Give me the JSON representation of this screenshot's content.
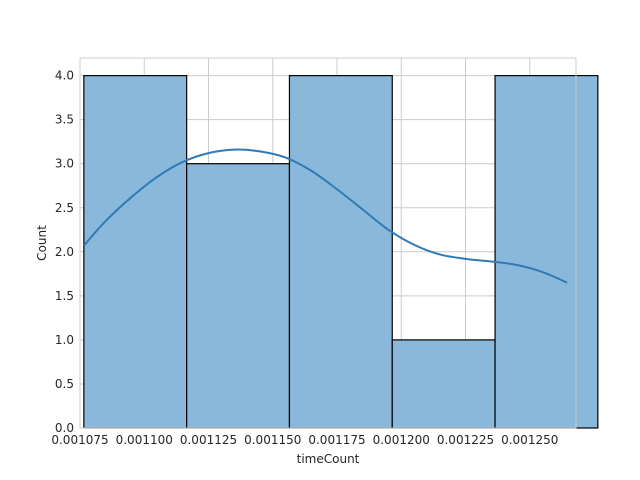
{
  "chart_data": {
    "type": "bar",
    "title": "",
    "xlabel": "timeCount",
    "ylabel": "Count",
    "xlim": [
      0.001075,
      0.001268
    ],
    "ylim": [
      0,
      4.2
    ],
    "bin_edges": [
      0.0010765,
      0.0011165,
      0.0011565,
      0.0011965,
      0.0012365,
      0.0012765
    ],
    "values": [
      4,
      3,
      4,
      1,
      4
    ],
    "x_ticks": [
      0.001075,
      0.0011,
      0.001125,
      0.00115,
      0.001175,
      0.0012,
      0.001225,
      0.00125
    ],
    "x_tick_labels": [
      "0.001075",
      "0.001100",
      "0.001125",
      "0.001150",
      "0.001175",
      "0.001200",
      "0.001225",
      "0.001250"
    ],
    "y_ticks": [
      0,
      0.5,
      1.0,
      1.5,
      2.0,
      2.5,
      3.0,
      3.5,
      4.0
    ],
    "y_tick_labels": [
      "0.0",
      "0.5",
      "1.0",
      "1.5",
      "2.0",
      "2.5",
      "3.0",
      "3.5",
      "4.0"
    ],
    "kde": {
      "x": [
        0.0010765,
        0.001085,
        0.001095,
        0.001105,
        0.001115,
        0.001125,
        0.001135,
        0.001145,
        0.001155,
        0.001165,
        0.001175,
        0.001185,
        0.001195,
        0.001205,
        0.001215,
        0.001225,
        0.001235,
        0.001245,
        0.001255,
        0.0012645
      ],
      "y": [
        2.07,
        2.35,
        2.62,
        2.85,
        3.02,
        3.12,
        3.16,
        3.14,
        3.07,
        2.92,
        2.71,
        2.48,
        2.25,
        2.08,
        1.97,
        1.92,
        1.89,
        1.85,
        1.77,
        1.65
      ]
    },
    "grid": true,
    "colors": {
      "bar_fill": "#8ab8da",
      "bar_edge": "#000000",
      "kde_line": "#2f7ab8",
      "grid": "#cccccc",
      "spine": "#cccccc"
    }
  }
}
